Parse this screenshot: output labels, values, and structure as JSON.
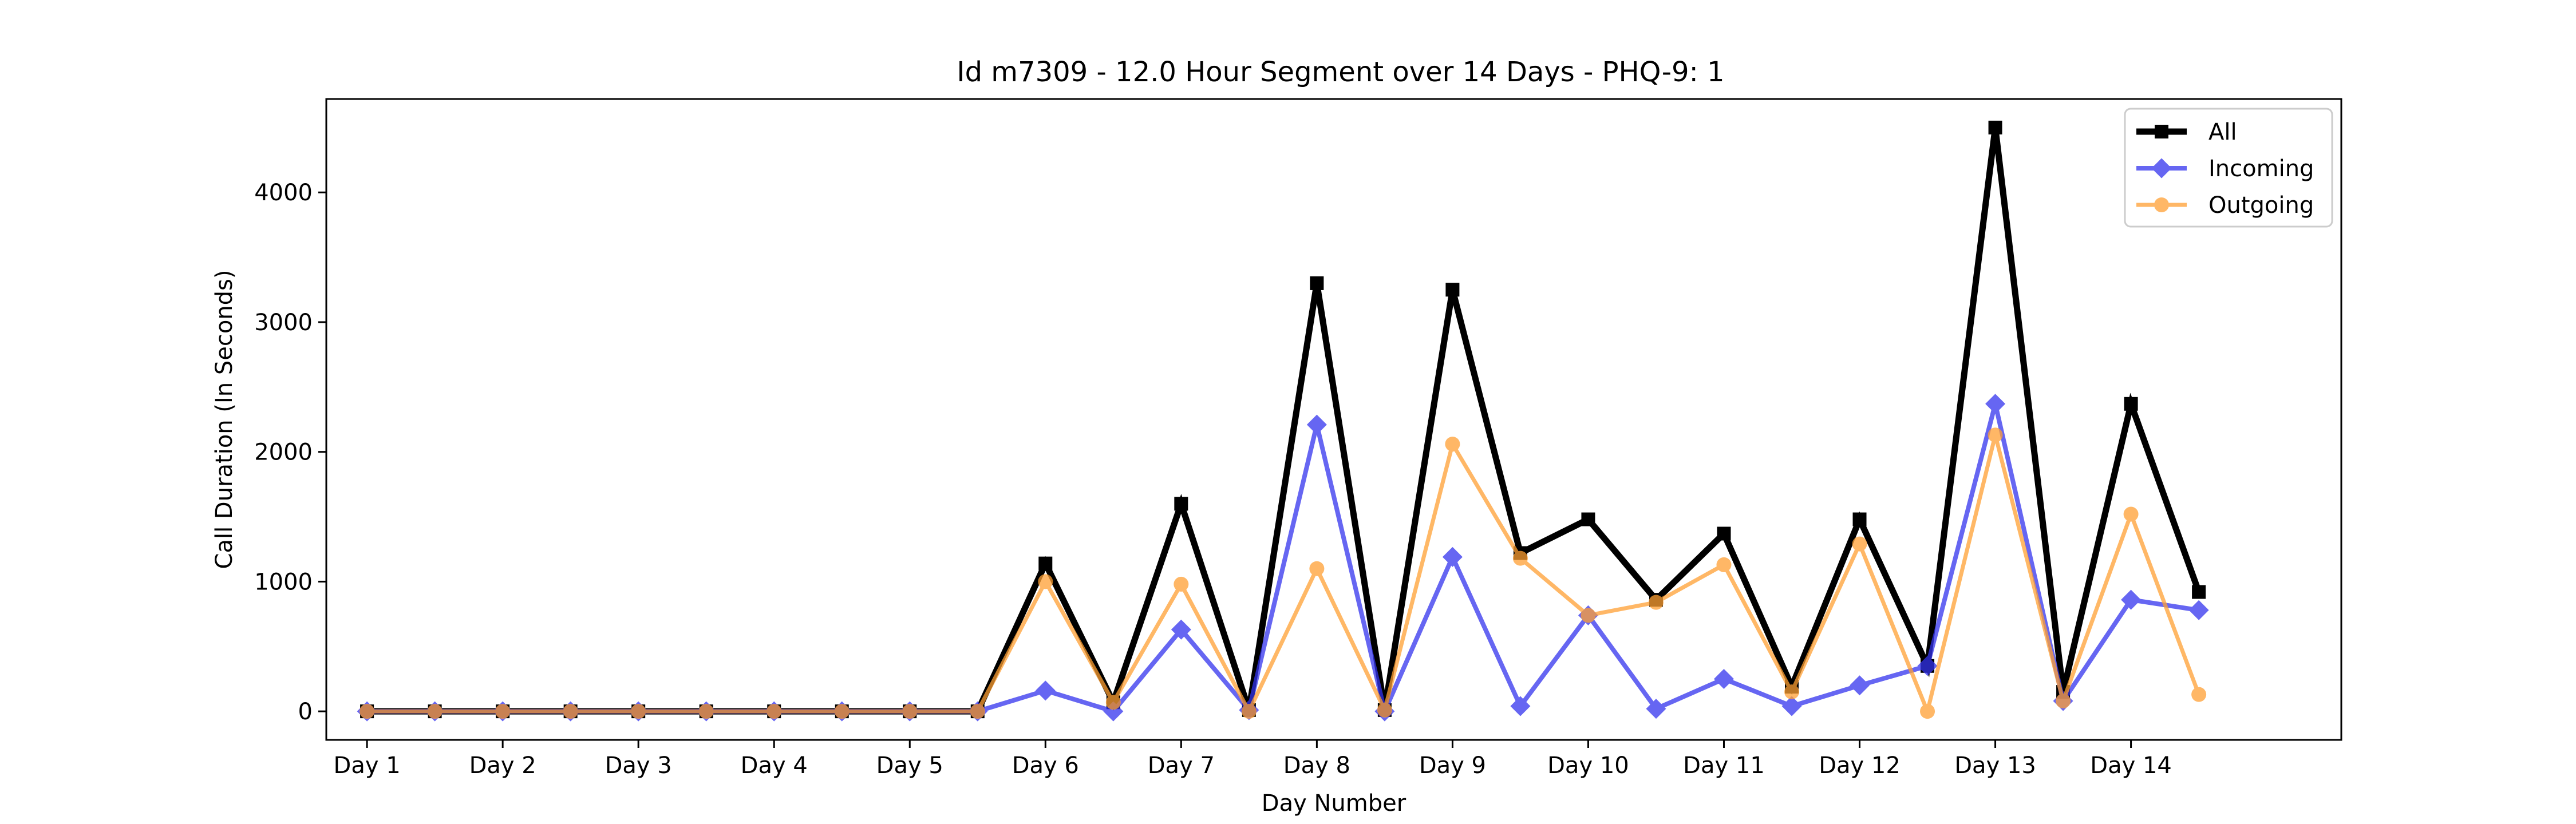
{
  "chart_data": {
    "type": "line",
    "title": "Id m7309 - 12.0 Hour Segment over 14 Days - PHQ-9: 1",
    "xlabel": "Day Number",
    "ylabel": "Call Duration (In Seconds)",
    "ylim": [
      -220,
      4720
    ],
    "y_ticks": [
      0,
      1000,
      2000,
      3000,
      4000
    ],
    "x_tick_labels": [
      "Day 1",
      "Day 2",
      "Day 3",
      "Day 4",
      "Day 5",
      "Day 6",
      "Day 7",
      "Day 8",
      "Day 9",
      "Day 10",
      "Day 11",
      "Day 12",
      "Day 13",
      "Day 14"
    ],
    "x_range": [
      -0.6,
      29.1
    ],
    "grid": false,
    "legend_position": "top-right",
    "series": [
      {
        "name": "All",
        "color": "#000000",
        "marker": "square",
        "values": [
          0,
          0,
          0,
          0,
          0,
          0,
          0,
          0,
          0,
          0,
          1140,
          70,
          1600,
          10,
          3300,
          10,
          3250,
          1220,
          1480,
          860,
          1370,
          190,
          1480,
          350,
          4500,
          150,
          2370,
          920
        ]
      },
      {
        "name": "Incoming",
        "color": "#3333ee",
        "marker": "diamond",
        "values": [
          0,
          0,
          0,
          0,
          0,
          0,
          0,
          0,
          0,
          0,
          160,
          0,
          630,
          10,
          2210,
          0,
          1190,
          40,
          740,
          20,
          250,
          40,
          200,
          350,
          2370,
          80,
          860,
          780
        ]
      },
      {
        "name": "Outgoing",
        "color": "#ffa033",
        "marker": "circle",
        "values": [
          0,
          0,
          0,
          0,
          0,
          0,
          0,
          0,
          0,
          0,
          1000,
          70,
          980,
          0,
          1100,
          10,
          2060,
          1180,
          740,
          840,
          1130,
          150,
          1290,
          0,
          2130,
          80,
          1520,
          130
        ]
      }
    ]
  }
}
